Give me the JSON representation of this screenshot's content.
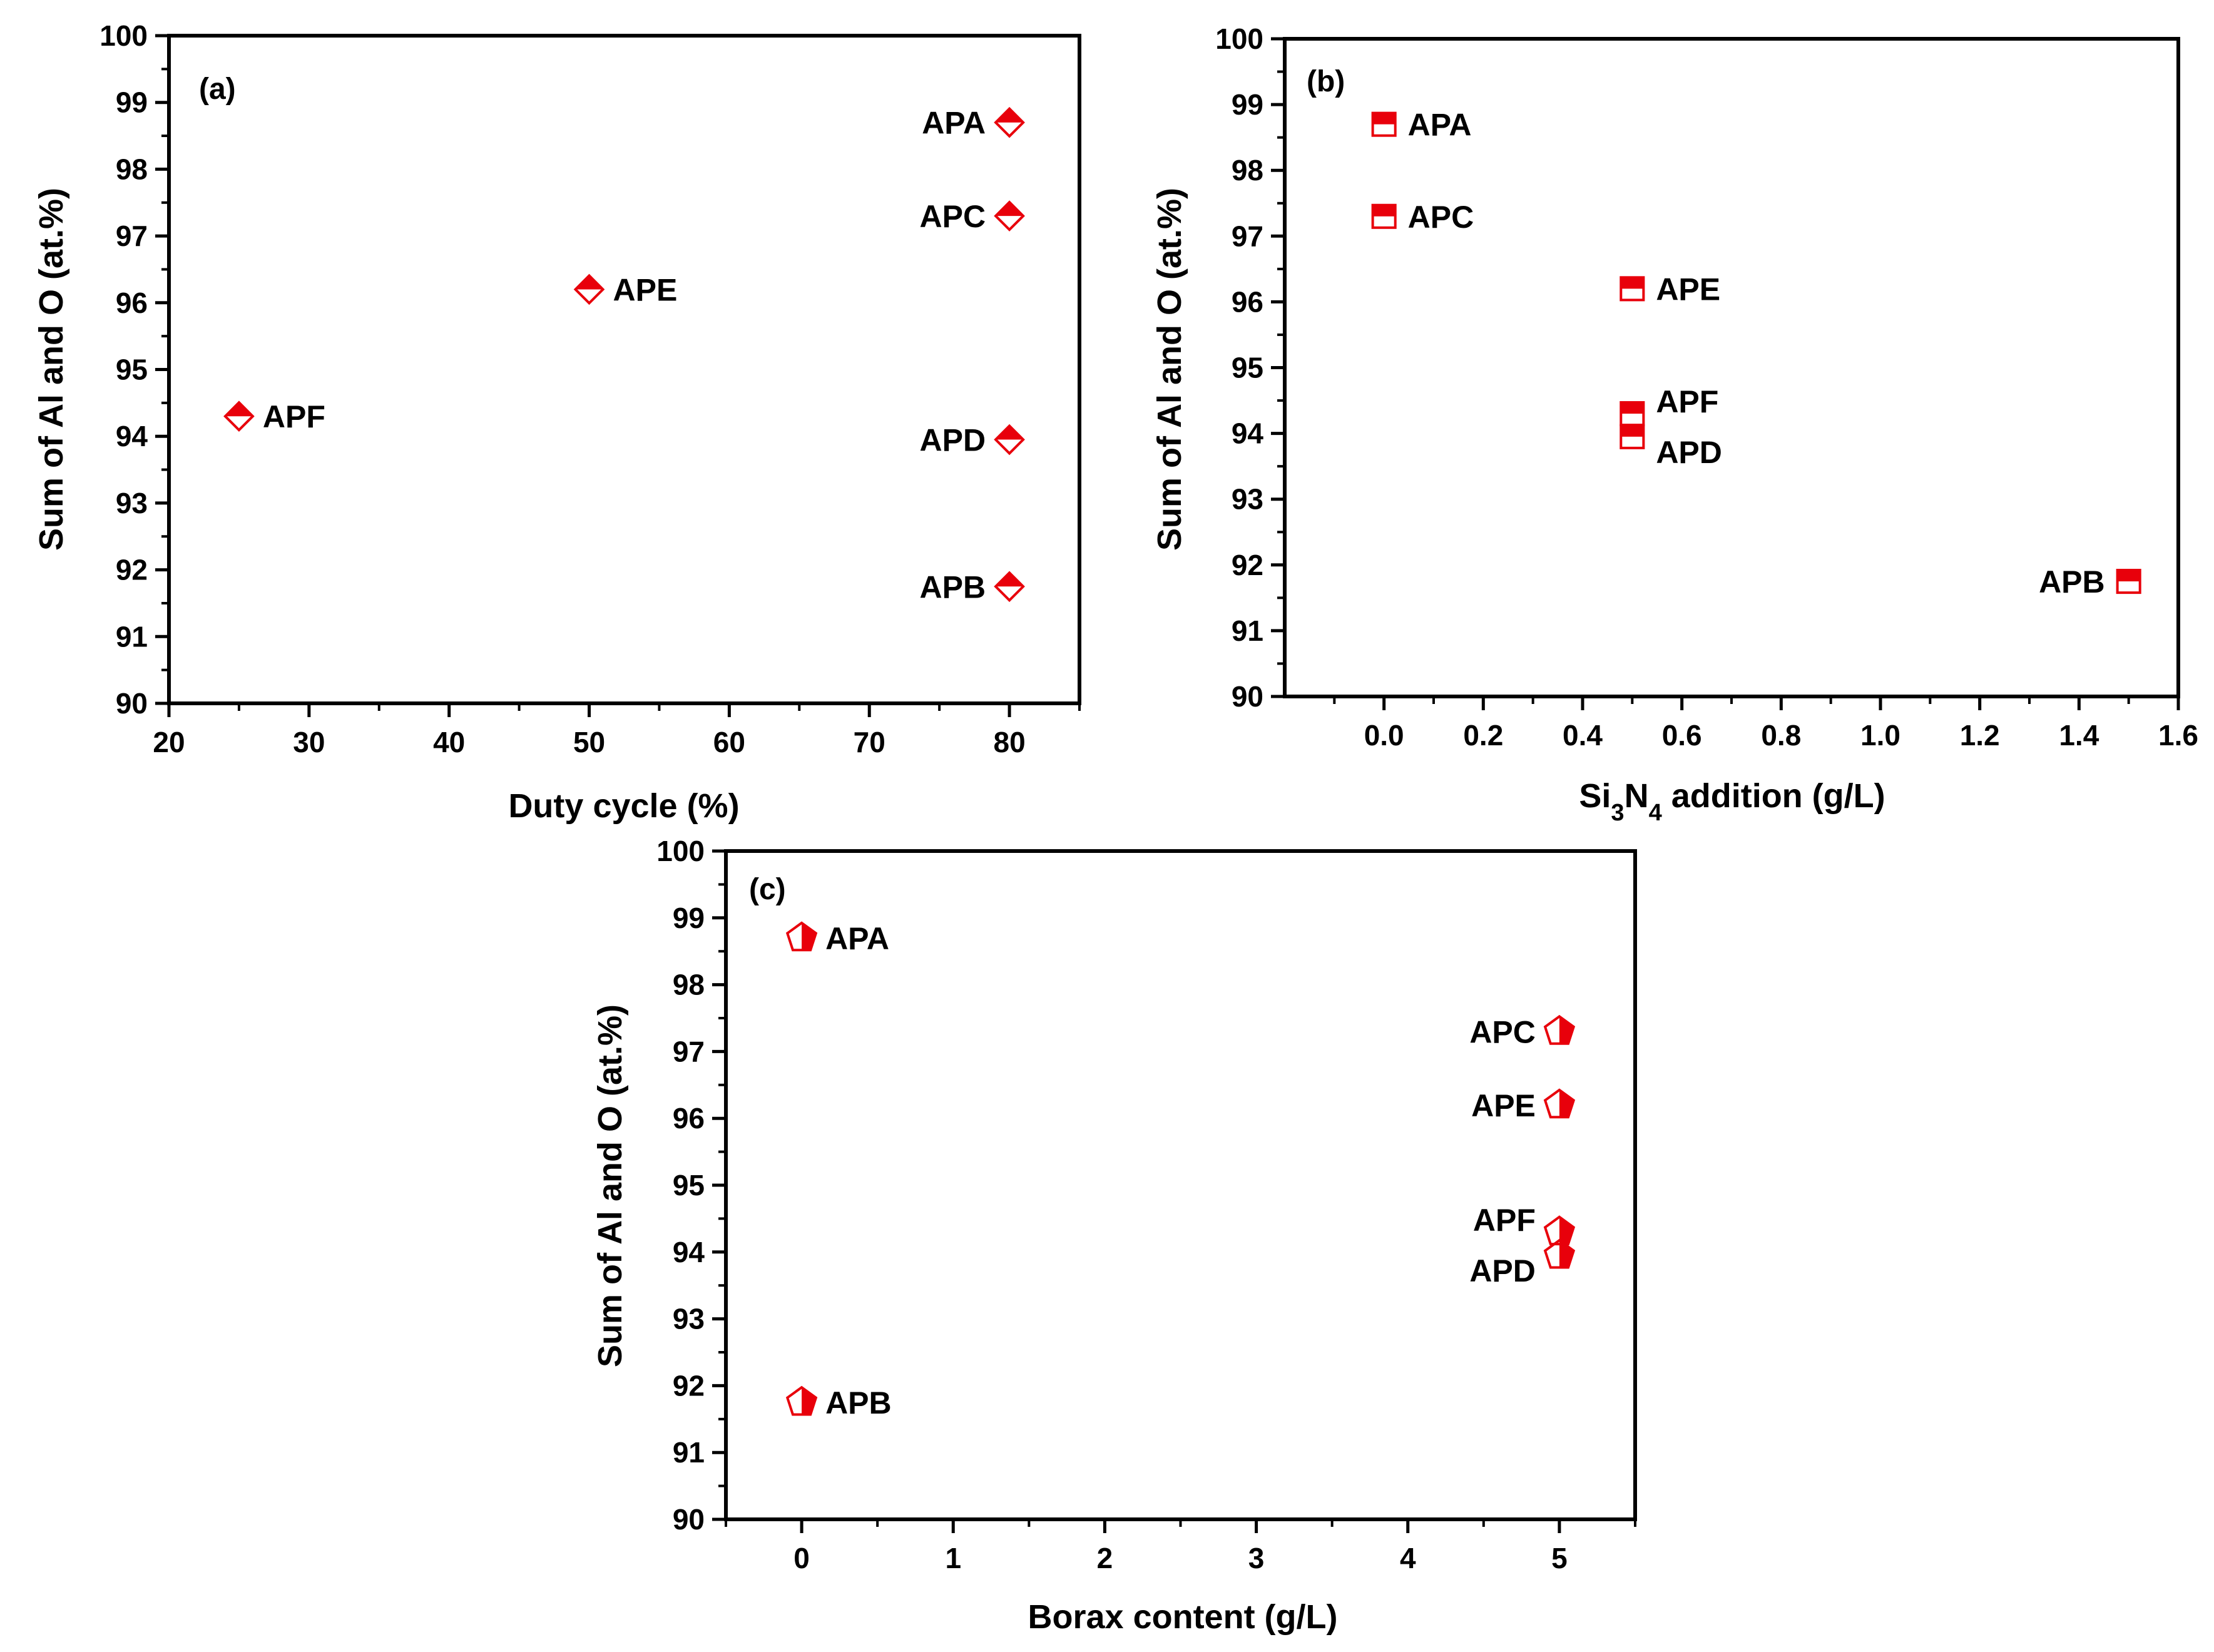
{
  "chart_data": [
    {
      "type": "scatter",
      "panel_label": "(a)",
      "xlabel": "Duty cycle (%)",
      "ylabel": "Sum of Al and O (at.%)",
      "xlim": [
        20,
        85
      ],
      "ylim": [
        90,
        100
      ],
      "xticks": [
        20,
        30,
        40,
        50,
        60,
        70,
        80
      ],
      "xtick_labels": [
        "20",
        "30",
        "40",
        "50",
        "60",
        "70",
        "80"
      ],
      "yticks": [
        90,
        91,
        92,
        93,
        94,
        95,
        96,
        97,
        98,
        99,
        100
      ],
      "ytick_labels": [
        "90",
        "91",
        "92",
        "93",
        "94",
        "95",
        "96",
        "97",
        "98",
        "99",
        "100"
      ],
      "marker": "diamond-half-filled",
      "color": "#e8000b",
      "points": [
        {
          "label": "APA",
          "x": 80,
          "y": 98.7,
          "label_side": "left"
        },
        {
          "label": "APC",
          "x": 80,
          "y": 97.3,
          "label_side": "left"
        },
        {
          "label": "APE",
          "x": 50,
          "y": 96.2,
          "label_side": "right"
        },
        {
          "label": "APF",
          "x": 25,
          "y": 94.3,
          "label_side": "right"
        },
        {
          "label": "APD",
          "x": 80,
          "y": 93.95,
          "label_side": "left"
        },
        {
          "label": "APB",
          "x": 80,
          "y": 91.75,
          "label_side": "left"
        }
      ]
    },
    {
      "type": "scatter",
      "panel_label": "(b)",
      "xlabel_main": "Si",
      "xlabel_sub1": "3",
      "xlabel_mid": "N",
      "xlabel_sub2": "4",
      "xlabel_rest": " addition (g/L)",
      "ylabel": "Sum of Al and O (at.%)",
      "xlim": [
        -0.2,
        1.6
      ],
      "ylim": [
        90,
        100
      ],
      "xticks": [
        0.0,
        0.2,
        0.4,
        0.6,
        0.8,
        1.0,
        1.2,
        1.4,
        1.6
      ],
      "xtick_labels": [
        "0.0",
        "0.2",
        "0.4",
        "0.6",
        "0.8",
        "1.0",
        "1.2",
        "1.4",
        "1.6"
      ],
      "yticks": [
        90,
        91,
        92,
        93,
        94,
        95,
        96,
        97,
        98,
        99,
        100
      ],
      "ytick_labels": [
        "90",
        "91",
        "92",
        "93",
        "94",
        "95",
        "96",
        "97",
        "98",
        "99",
        "100"
      ],
      "marker": "square-half-filled",
      "color": "#e8000b",
      "points": [
        {
          "label": "APA",
          "x": 0.0,
          "y": 98.7,
          "label_side": "right"
        },
        {
          "label": "APC",
          "x": 0.0,
          "y": 97.3,
          "label_side": "right"
        },
        {
          "label": "APE",
          "x": 0.5,
          "y": 96.2,
          "label_side": "right"
        },
        {
          "label": "APF",
          "x": 0.5,
          "y": 94.3,
          "label_side": "right-up"
        },
        {
          "label": "APD",
          "x": 0.5,
          "y": 93.95,
          "label_side": "right-down"
        },
        {
          "label": "APB",
          "x": 1.5,
          "y": 91.75,
          "label_side": "left"
        }
      ]
    },
    {
      "type": "scatter",
      "panel_label": "(c)",
      "xlabel": "Borax content (g/L)",
      "ylabel": "Sum of Al and O (at.%)",
      "xlim": [
        -0.5,
        5.5
      ],
      "ylim": [
        90,
        100
      ],
      "xticks": [
        0,
        1,
        2,
        3,
        4,
        5
      ],
      "xtick_labels": [
        "0",
        "1",
        "2",
        "3",
        "4",
        "5"
      ],
      "yticks": [
        90,
        91,
        92,
        93,
        94,
        95,
        96,
        97,
        98,
        99,
        100
      ],
      "ytick_labels": [
        "90",
        "91",
        "92",
        "93",
        "94",
        "95",
        "96",
        "97",
        "98",
        "99",
        "100"
      ],
      "marker": "pentagon-half-filled",
      "color": "#e8000b",
      "points": [
        {
          "label": "APA",
          "x": 0,
          "y": 98.7,
          "label_side": "right"
        },
        {
          "label": "APC",
          "x": 5,
          "y": 97.3,
          "label_side": "left"
        },
        {
          "label": "APE",
          "x": 5,
          "y": 96.2,
          "label_side": "left"
        },
        {
          "label": "APF",
          "x": 5,
          "y": 94.3,
          "label_side": "left-up"
        },
        {
          "label": "APD",
          "x": 5,
          "y": 93.95,
          "label_side": "left-down"
        },
        {
          "label": "APB",
          "x": 0,
          "y": 91.75,
          "label_side": "right"
        }
      ]
    }
  ]
}
